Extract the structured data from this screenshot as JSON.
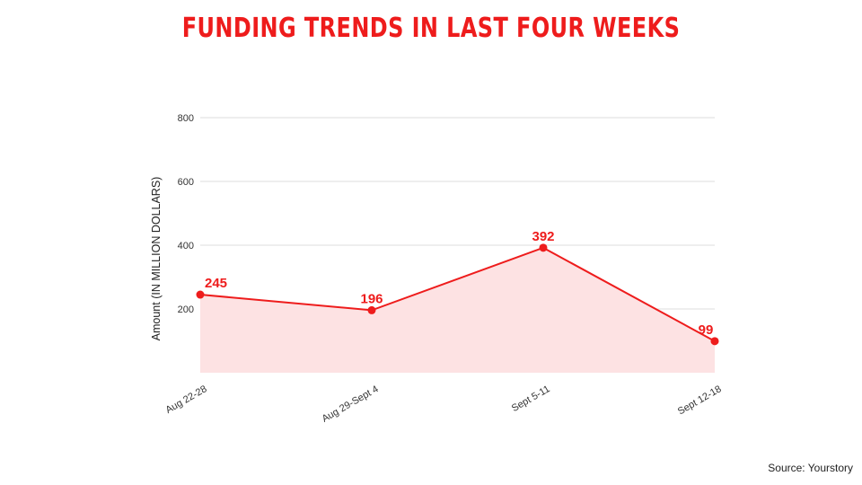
{
  "title": "FUNDING TRENDS IN LAST FOUR WEEKS",
  "source": "Source: Yourstory",
  "colors": {
    "accent": "#ee1c1c",
    "fill": "#fde2e3",
    "grid": "#dddddd"
  },
  "chart_data": {
    "type": "area",
    "title": "FUNDING TRENDS IN LAST FOUR WEEKS",
    "categories": [
      "Aug 22-28",
      "Aug 29-Sept 4",
      "Sept 5-11",
      "Sept 12-18"
    ],
    "values": [
      245,
      196,
      392,
      99
    ],
    "data_labels": [
      "245",
      "196",
      "392",
      "99"
    ],
    "ylabel": "Amount (IN MILLION DOLLARS)",
    "xlabel": "",
    "ylim": [
      0,
      800
    ],
    "yticks": [
      200,
      400,
      600,
      800
    ],
    "ytick_labels": [
      "200",
      "400",
      "600",
      "800"
    ],
    "grid": true,
    "legend": "none"
  }
}
